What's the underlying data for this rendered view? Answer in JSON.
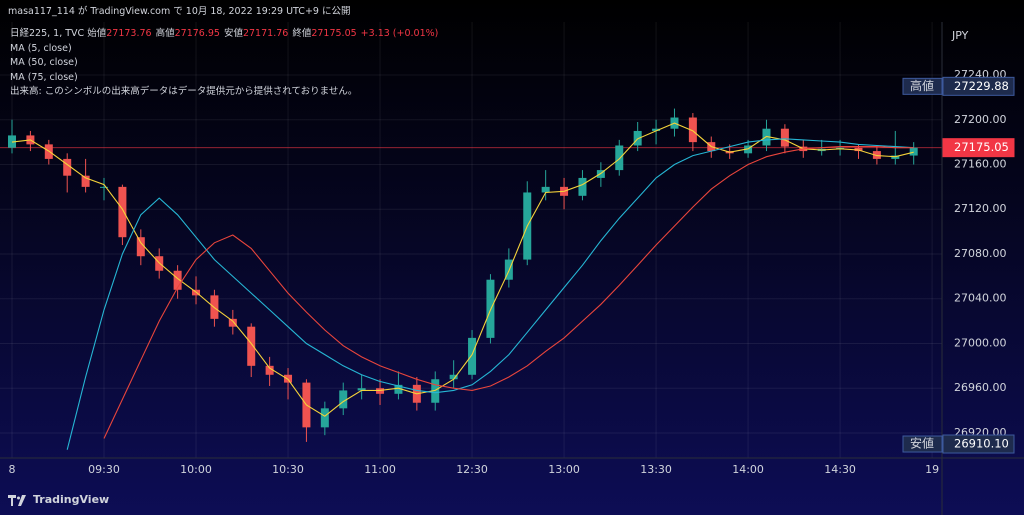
{
  "header": "masa117_114 が TradingView.com で 10月 18, 2022 19:29 UTC+9 に公開",
  "footer": "TradingView",
  "chart_data": {
    "type": "candlestick",
    "symbol": "日経225, 1, TVC",
    "ohlc_legend": [
      {
        "label": "始値",
        "value": 27173.76
      },
      {
        "label": "高値",
        "value": 27176.95
      },
      {
        "label": "安値",
        "value": 27171.76
      },
      {
        "label": "終値",
        "value": 27175.05
      }
    ],
    "change": "+3.13 (+0.01%)",
    "volume_note": "出来高: このシンボルの出来高データはデータ提供元から提供されておりません。",
    "currency": "JPY",
    "up_color": "#26a69a",
    "down_color": "#ef5350",
    "x": [
      "09:00",
      "09:06",
      "09:12",
      "09:18",
      "09:24",
      "09:30",
      "09:36",
      "09:42",
      "09:48",
      "09:54",
      "10:00",
      "10:06",
      "10:12",
      "10:18",
      "10:24",
      "10:30",
      "10:36",
      "10:42",
      "10:48",
      "10:54",
      "11:00",
      "11:06",
      "11:12",
      "11:18",
      "11:24",
      "12:30",
      "12:36",
      "12:42",
      "12:48",
      "12:54",
      "13:00",
      "13:06",
      "13:12",
      "13:18",
      "13:24",
      "13:30",
      "13:36",
      "13:42",
      "13:48",
      "13:54",
      "14:00",
      "14:06",
      "14:12",
      "14:18",
      "14:24",
      "14:30",
      "14:36",
      "14:42",
      "14:48",
      "14:54"
    ],
    "open": [
      27175,
      27186,
      27178,
      27165,
      27150,
      27140,
      27140,
      27095,
      27078,
      27065,
      27048,
      27043,
      27022,
      27015,
      26980,
      26972,
      26965,
      26925,
      26942,
      26958,
      26960,
      26955,
      26963,
      26947,
      26968,
      26972,
      27005,
      27057,
      27075,
      27135,
      27140,
      27132,
      27148,
      27155,
      27177,
      27190,
      27192,
      27202,
      27180,
      27172,
      27170,
      27177,
      27192,
      27176,
      27172,
      27174,
      27175,
      27172,
      27165,
      27168
    ],
    "high": [
      27200,
      27190,
      27182,
      27170,
      27165,
      27148,
      27142,
      27102,
      27085,
      27070,
      27060,
      27048,
      27030,
      27018,
      26988,
      26978,
      26968,
      26948,
      26965,
      26972,
      26968,
      26975,
      26970,
      26975,
      26985,
      27012,
      27062,
      27085,
      27145,
      27155,
      27148,
      27155,
      27162,
      27182,
      27198,
      27200,
      27210,
      27206,
      27185,
      27178,
      27182,
      27200,
      27196,
      27182,
      27182,
      27182,
      27178,
      27176,
      27190,
      27180
    ],
    "low": [
      27170,
      27172,
      27160,
      27135,
      27135,
      27128,
      27088,
      27070,
      27058,
      27040,
      27035,
      27015,
      27008,
      26970,
      26962,
      26950,
      26912,
      26918,
      26936,
      26950,
      26945,
      26950,
      26940,
      26940,
      26960,
      26968,
      27000,
      27050,
      27070,
      27128,
      27120,
      27128,
      27140,
      27150,
      27172,
      27178,
      27185,
      27172,
      27166,
      27165,
      27166,
      27172,
      27170,
      27166,
      27168,
      27168,
      27165,
      27160,
      27160,
      27160
    ],
    "close": [
      27186,
      27178,
      27165,
      27150,
      27140,
      27140,
      27095,
      27078,
      27065,
      27048,
      27043,
      27022,
      27015,
      26980,
      26972,
      26965,
      26925,
      26942,
      26958,
      26960,
      26955,
      26963,
      26947,
      26968,
      26972,
      27005,
      27057,
      27075,
      27135,
      27140,
      27132,
      27148,
      27155,
      27177,
      27190,
      27192,
      27202,
      27180,
      27172,
      27170,
      27177,
      27192,
      27176,
      27172,
      27174,
      27175,
      27172,
      27165,
      27168,
      27175.05
    ],
    "series": [
      {
        "name": "MA (5, close)",
        "color": "#f5d33a",
        "values": [
          27180,
          27182,
          27172,
          27160,
          27148,
          27142,
          27120,
          27090,
          27072,
          27058,
          27046,
          27032,
          27020,
          27000,
          26978,
          26968,
          26945,
          26935,
          26948,
          26958,
          26958,
          26960,
          26955,
          26958,
          26968,
          26990,
          27030,
          27065,
          27105,
          27135,
          27136,
          27142,
          27152,
          27165,
          27183,
          27190,
          27197,
          27190,
          27176,
          27171,
          27174,
          27185,
          27182,
          27174,
          27173,
          27174,
          27173,
          27168,
          27167,
          27171
        ]
      },
      {
        "name": "MA (50, close)",
        "color": "#26b6d4",
        "values": [
          null,
          null,
          null,
          26905,
          26970,
          27030,
          27080,
          27115,
          27130,
          27115,
          27095,
          27075,
          27060,
          27045,
          27030,
          27015,
          27000,
          26990,
          26980,
          26972,
          26966,
          26962,
          26958,
          26956,
          26958,
          26963,
          26975,
          26990,
          27010,
          27030,
          27050,
          27070,
          27092,
          27112,
          27130,
          27148,
          27160,
          27168,
          27172,
          27176,
          27180,
          27182,
          27183,
          27182,
          27181,
          27180,
          27178,
          27177,
          27176,
          27175
        ]
      },
      {
        "name": "MA (75, close)",
        "color": "#e8453c",
        "values": [
          null,
          null,
          null,
          null,
          null,
          26915,
          26950,
          26985,
          27020,
          27050,
          27075,
          27090,
          27097,
          27085,
          27065,
          27045,
          27028,
          27012,
          26998,
          26988,
          26980,
          26974,
          26968,
          26963,
          26960,
          26958,
          26962,
          26970,
          26980,
          26993,
          27005,
          27020,
          27035,
          27052,
          27070,
          27088,
          27105,
          27122,
          27138,
          27150,
          27160,
          27167,
          27171,
          27174,
          27175,
          27176,
          27176,
          27176,
          27175,
          27175
        ]
      }
    ],
    "ylim": [
      26897.6,
      27287.4
    ],
    "yticks": [
      {
        "value": 26920,
        "label": "26920.00"
      },
      {
        "value": 26960,
        "label": "26960.00"
      },
      {
        "value": 27000,
        "label": "27000.00"
      },
      {
        "value": 27040,
        "label": "27040.00"
      },
      {
        "value": 27080,
        "label": "27080.00"
      },
      {
        "value": 27120,
        "label": "27120.00"
      },
      {
        "value": 27160,
        "label": "27160.00"
      },
      {
        "value": 27200,
        "label": "27200.00"
      },
      {
        "value": 27240,
        "label": "27240.00"
      }
    ],
    "xticks": [
      {
        "value": "09:00",
        "label": "8"
      },
      "09:30",
      "10:00",
      "10:30",
      "11:00",
      "12:30",
      "13:00",
      "13:30",
      "14:00",
      "14:30",
      {
        "value": "15:00",
        "label": "19"
      }
    ],
    "grid": true,
    "high_badge": {
      "label": "高値",
      "value": 27229.88
    },
    "low_badge": {
      "label": "安値",
      "value": 26910.1,
      "value_label": "26910.10"
    },
    "last_price": 27175.05,
    "last_price_color": "#f23645"
  }
}
